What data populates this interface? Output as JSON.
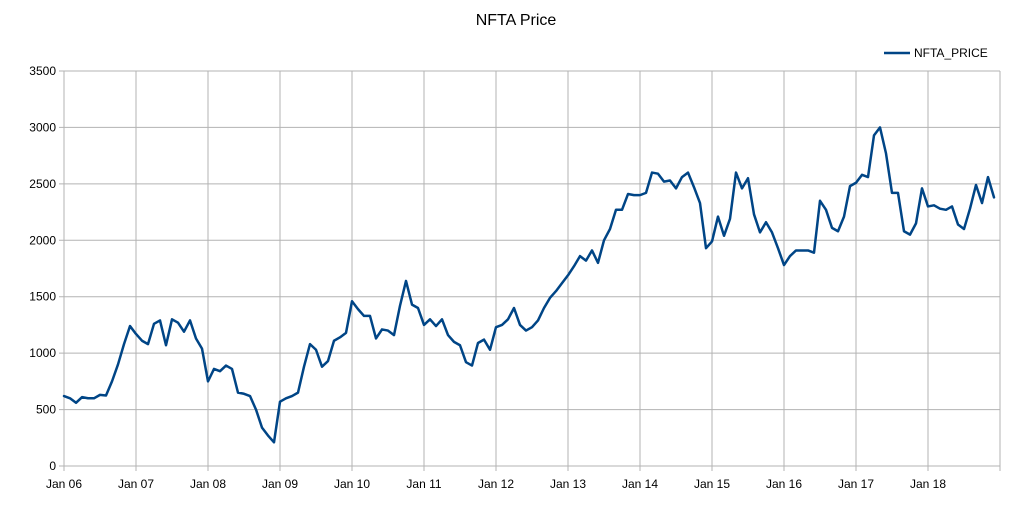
{
  "chart_data": {
    "type": "line",
    "title": "NFTA Price",
    "xlabel": "",
    "ylabel": "",
    "ylim": [
      0,
      3500
    ],
    "yticks": [
      0,
      500,
      1000,
      1500,
      2000,
      2500,
      3000,
      3500
    ],
    "xlim": [
      "2006-01",
      "2019-01"
    ],
    "x_tick_labels": [
      "Jan 06",
      "Jan 07",
      "Jan 08",
      "Jan 09",
      "Jan 10",
      "Jan 11",
      "Jan 12",
      "Jan 13",
      "Jan 14",
      "Jan 15",
      "Jan 16",
      "Jan 17",
      "Jan 18"
    ],
    "grid": true,
    "legend_position": "top-right",
    "series": [
      {
        "name": "NFTA_PRICE",
        "color": "#004586",
        "x": [
          "2006-01",
          "2006-02",
          "2006-03",
          "2006-04",
          "2006-05",
          "2006-06",
          "2006-07",
          "2006-08",
          "2006-09",
          "2006-10",
          "2006-11",
          "2006-12",
          "2007-01",
          "2007-02",
          "2007-03",
          "2007-04",
          "2007-05",
          "2007-06",
          "2007-07",
          "2007-08",
          "2007-09",
          "2007-10",
          "2007-11",
          "2007-12",
          "2008-01",
          "2008-02",
          "2008-03",
          "2008-04",
          "2008-05",
          "2008-06",
          "2008-07",
          "2008-08",
          "2008-09",
          "2008-10",
          "2008-11",
          "2008-12",
          "2009-01",
          "2009-02",
          "2009-03",
          "2009-04",
          "2009-05",
          "2009-06",
          "2009-07",
          "2009-08",
          "2009-09",
          "2009-10",
          "2009-11",
          "2009-12",
          "2010-01",
          "2010-02",
          "2010-03",
          "2010-04",
          "2010-05",
          "2010-06",
          "2010-07",
          "2010-08",
          "2010-09",
          "2010-10",
          "2010-11",
          "2010-12",
          "2011-01",
          "2011-02",
          "2011-03",
          "2011-04",
          "2011-05",
          "2011-06",
          "2011-07",
          "2011-08",
          "2011-09",
          "2011-10",
          "2011-11",
          "2011-12",
          "2012-01",
          "2012-02",
          "2012-03",
          "2012-04",
          "2012-05",
          "2012-06",
          "2012-07",
          "2012-08",
          "2012-09",
          "2012-10",
          "2012-11",
          "2012-12",
          "2013-01",
          "2013-02",
          "2013-03",
          "2013-04",
          "2013-05",
          "2013-06",
          "2013-07",
          "2013-08",
          "2013-09",
          "2013-10",
          "2013-11",
          "2013-12",
          "2014-01",
          "2014-02",
          "2014-03",
          "2014-04",
          "2014-05",
          "2014-06",
          "2014-07",
          "2014-08",
          "2014-09",
          "2014-10",
          "2014-11",
          "2014-12",
          "2015-01",
          "2015-02",
          "2015-03",
          "2015-04",
          "2015-05",
          "2015-06",
          "2015-07",
          "2015-08",
          "2015-09",
          "2015-10",
          "2015-11",
          "2015-12",
          "2016-01",
          "2016-02",
          "2016-03",
          "2016-04",
          "2016-05",
          "2016-06",
          "2016-07",
          "2016-08",
          "2016-09",
          "2016-10",
          "2016-11",
          "2016-12",
          "2017-01",
          "2017-02",
          "2017-03",
          "2017-04",
          "2017-05",
          "2017-06",
          "2017-07",
          "2017-08",
          "2017-09",
          "2017-10",
          "2017-11",
          "2017-12",
          "2018-01",
          "2018-02",
          "2018-03",
          "2018-04",
          "2018-05",
          "2018-06",
          "2018-07",
          "2018-08",
          "2018-09",
          "2018-10",
          "2018-11",
          "2018-12"
        ],
        "values": [
          620,
          600,
          560,
          610,
          600,
          600,
          630,
          625,
          750,
          900,
          1080,
          1240,
          1170,
          1110,
          1080,
          1260,
          1290,
          1070,
          1300,
          1270,
          1190,
          1290,
          1130,
          1040,
          750,
          860,
          840,
          890,
          860,
          650,
          640,
          620,
          500,
          340,
          270,
          210,
          570,
          600,
          620,
          650,
          880,
          1080,
          1030,
          880,
          930,
          1110,
          1140,
          1180,
          1460,
          1390,
          1330,
          1330,
          1130,
          1210,
          1200,
          1160,
          1420,
          1640,
          1430,
          1400,
          1250,
          1300,
          1240,
          1300,
          1160,
          1100,
          1070,
          920,
          890,
          1090,
          1120,
          1030,
          1230,
          1250,
          1300,
          1400,
          1250,
          1200,
          1230,
          1290,
          1400,
          1490,
          1550,
          1620,
          1690,
          1770,
          1860,
          1820,
          1910,
          1800,
          2000,
          2100,
          2270,
          2270,
          2410,
          2400,
          2400,
          2420,
          2600,
          2590,
          2520,
          2530,
          2460,
          2560,
          2600,
          2470,
          2330,
          1930,
          1990,
          2210,
          2040,
          2190,
          2600,
          2460,
          2550,
          2230,
          2070,
          2160,
          2070,
          1930,
          1780,
          1860,
          1910,
          1910,
          1910,
          1890,
          2350,
          2270,
          2110,
          2080,
          2210,
          2480,
          2510,
          2580,
          2560,
          2930,
          3000,
          2770,
          2420,
          2420,
          2080,
          2050,
          2150,
          2460,
          2300,
          2310,
          2280,
          2270,
          2300,
          2140,
          2100,
          2280,
          2490,
          2330,
          2560,
          2380
        ]
      }
    ]
  }
}
